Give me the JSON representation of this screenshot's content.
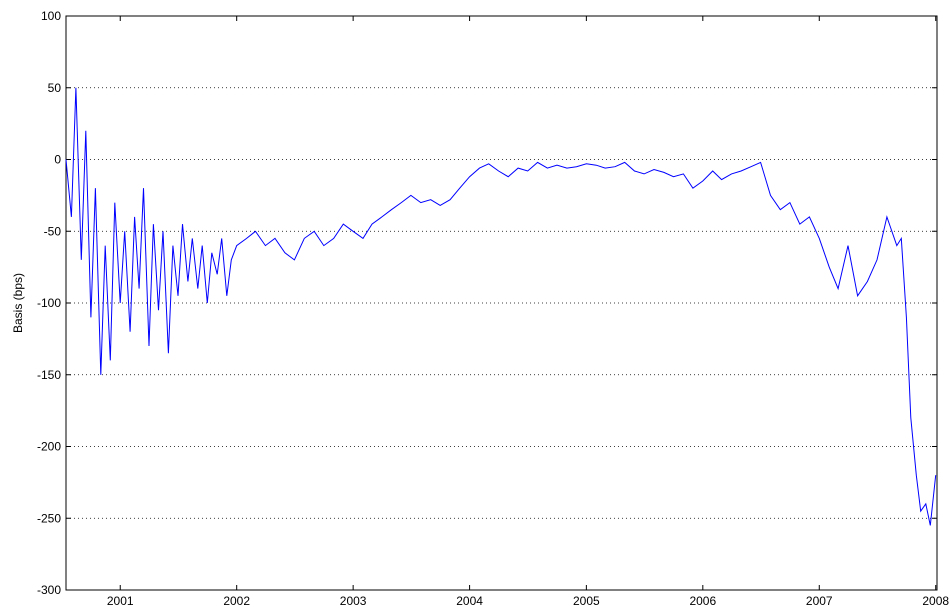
{
  "chart_data": {
    "type": "line",
    "title": "",
    "xlabel": "",
    "ylabel": "Basis (bps)",
    "xlim": [
      "2000-07-15",
      "2008-01-05"
    ],
    "ylim": [
      -300,
      100
    ],
    "grid": "y-dotted",
    "legend": "none",
    "xticks": [
      "2001",
      "2002",
      "2003",
      "2004",
      "2005",
      "2006",
      "2007",
      "2008"
    ],
    "yticks": [
      "100",
      "50",
      "0",
      "-50",
      "-100",
      "-150",
      "-200",
      "-250",
      "-300"
    ],
    "series": [
      {
        "color": "#0000ff",
        "x": [
          "2000-07-15",
          "2000-08-01",
          "2000-08-15",
          "2000-09-01",
          "2000-09-15",
          "2000-10-01",
          "2000-10-15",
          "2000-11-01",
          "2000-11-15",
          "2000-12-01",
          "2000-12-15",
          "2001-01-01",
          "2001-01-15",
          "2001-02-01",
          "2001-02-15",
          "2001-03-01",
          "2001-03-15",
          "2001-04-01",
          "2001-04-15",
          "2001-05-01",
          "2001-05-15",
          "2001-06-01",
          "2001-06-15",
          "2001-07-01",
          "2001-07-15",
          "2001-08-01",
          "2001-08-15",
          "2001-09-01",
          "2001-09-15",
          "2001-10-01",
          "2001-10-15",
          "2001-11-01",
          "2001-11-15",
          "2001-12-01",
          "2001-12-15",
          "2002-01-01",
          "2002-02-01",
          "2002-03-01",
          "2002-04-01",
          "2002-05-01",
          "2002-06-01",
          "2002-07-01",
          "2002-08-01",
          "2002-09-01",
          "2002-10-01",
          "2002-11-01",
          "2002-12-01",
          "2003-01-01",
          "2003-02-01",
          "2003-03-01",
          "2003-04-01",
          "2003-05-01",
          "2003-06-01",
          "2003-07-01",
          "2003-08-01",
          "2003-09-01",
          "2003-10-01",
          "2003-11-01",
          "2003-12-01",
          "2004-01-01",
          "2004-02-01",
          "2004-03-01",
          "2004-04-01",
          "2004-05-01",
          "2004-06-01",
          "2004-07-01",
          "2004-08-01",
          "2004-09-01",
          "2004-10-01",
          "2004-11-01",
          "2004-12-01",
          "2005-01-01",
          "2005-02-01",
          "2005-03-01",
          "2005-04-01",
          "2005-05-01",
          "2005-06-01",
          "2005-07-01",
          "2005-08-01",
          "2005-09-01",
          "2005-10-01",
          "2005-11-01",
          "2005-12-01",
          "2006-01-01",
          "2006-02-01",
          "2006-03-01",
          "2006-04-01",
          "2006-05-01",
          "2006-06-01",
          "2006-07-01",
          "2006-08-01",
          "2006-09-01",
          "2006-10-01",
          "2006-11-01",
          "2006-12-01",
          "2007-01-01",
          "2007-02-01",
          "2007-03-01",
          "2007-04-01",
          "2007-05-01",
          "2007-06-01",
          "2007-07-01",
          "2007-08-01",
          "2007-09-01",
          "2007-09-15",
          "2007-10-01",
          "2007-10-15",
          "2007-11-01",
          "2007-11-15",
          "2007-12-01",
          "2007-12-15",
          "2008-01-01"
        ],
        "y": [
          0,
          -40,
          50,
          -70,
          20,
          -110,
          -20,
          -150,
          -60,
          -140,
          -30,
          -100,
          -50,
          -120,
          -40,
          -90,
          -20,
          -130,
          -45,
          -105,
          -50,
          -135,
          -60,
          -95,
          -45,
          -85,
          -55,
          -90,
          -60,
          -100,
          -65,
          -80,
          -55,
          -95,
          -70,
          -60,
          -55,
          -50,
          -60,
          -55,
          -65,
          -70,
          -55,
          -50,
          -60,
          -55,
          -45,
          -50,
          -55,
          -45,
          -40,
          -35,
          -30,
          -25,
          -30,
          -28,
          -32,
          -28,
          -20,
          -12,
          -6,
          -3,
          -8,
          -12,
          -6,
          -8,
          -2,
          -6,
          -4,
          -6,
          -5,
          -3,
          -4,
          -6,
          -5,
          -2,
          -8,
          -10,
          -7,
          -9,
          -12,
          -10,
          -20,
          -15,
          -8,
          -14,
          -10,
          -8,
          -5,
          -2,
          -25,
          -35,
          -30,
          -45,
          -40,
          -55,
          -75,
          -90,
          -60,
          -95,
          -85,
          -70,
          -40,
          -60,
          -55,
          -110,
          -180,
          -220,
          -245,
          -240,
          -255,
          -220
        ]
      }
    ]
  }
}
